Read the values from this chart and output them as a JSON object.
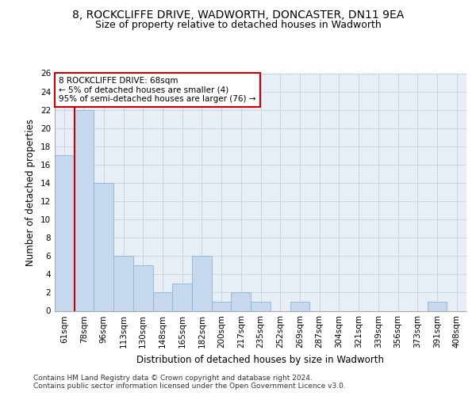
{
  "title1": "8, ROCKCLIFFE DRIVE, WADWORTH, DONCASTER, DN11 9EA",
  "title2": "Size of property relative to detached houses in Wadworth",
  "xlabel": "Distribution of detached houses by size in Wadworth",
  "ylabel": "Number of detached properties",
  "categories": [
    "61sqm",
    "78sqm",
    "96sqm",
    "113sqm",
    "130sqm",
    "148sqm",
    "165sqm",
    "182sqm",
    "200sqm",
    "217sqm",
    "235sqm",
    "252sqm",
    "269sqm",
    "287sqm",
    "304sqm",
    "321sqm",
    "339sqm",
    "356sqm",
    "373sqm",
    "391sqm",
    "408sqm"
  ],
  "values": [
    17,
    22,
    14,
    6,
    5,
    2,
    3,
    6,
    1,
    2,
    1,
    0,
    1,
    0,
    0,
    0,
    0,
    0,
    0,
    1,
    0
  ],
  "bar_color": "#c5d8ee",
  "bar_edge_color": "#8ab4d8",
  "annotation_box_text": "8 ROCKCLIFFE DRIVE: 68sqm\n← 5% of detached houses are smaller (4)\n95% of semi-detached houses are larger (76) →",
  "annotation_box_color": "white",
  "annotation_box_edge_color": "#cc0000",
  "vline_color": "#cc0000",
  "ylim": [
    0,
    26
  ],
  "yticks": [
    0,
    2,
    4,
    6,
    8,
    10,
    12,
    14,
    16,
    18,
    20,
    22,
    24,
    26
  ],
  "grid_color": "#c8d4e0",
  "background_color": "#e8eef6",
  "footer_text": "Contains HM Land Registry data © Crown copyright and database right 2024.\nContains public sector information licensed under the Open Government Licence v3.0.",
  "title_fontsize": 10,
  "subtitle_fontsize": 9,
  "xlabel_fontsize": 8.5,
  "ylabel_fontsize": 8.5,
  "tick_fontsize": 7.5,
  "annotation_fontsize": 7.5,
  "footer_fontsize": 6.5
}
